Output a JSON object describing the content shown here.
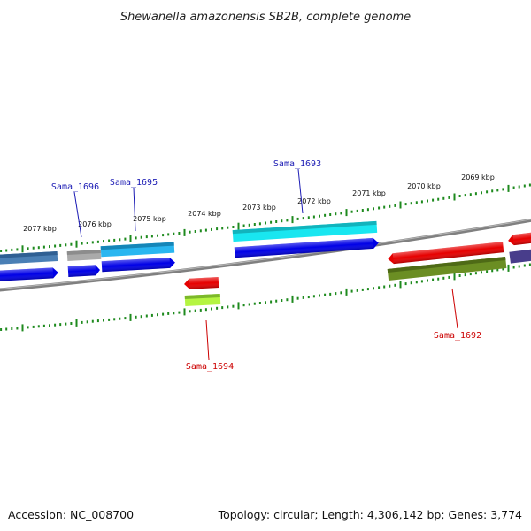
{
  "title": "Shewanella amazonensis SB2B, complete genome",
  "accession": "Accession: NC_008700",
  "summary": "Topology: circular; Length: 4,306,142 bp; Genes: 3,774",
  "ticks": [
    "2077 kbp",
    "2076 kbp",
    "2075 kbp",
    "2074 kbp",
    "2073 kbp",
    "2072 kbp",
    "2071 kbp",
    "2070 kbp",
    "2069 kbp"
  ],
  "genes": [
    {
      "name": "Sama_1696",
      "color": "#1a1ab4"
    },
    {
      "name": "Sama_1695",
      "color": "#1a1ab4"
    },
    {
      "name": "Sama_1693",
      "color": "#1a1ab4"
    },
    {
      "name": "Sama_1694",
      "color": "#cc0000"
    },
    {
      "name": "Sama_1692",
      "color": "#cc0000"
    }
  ],
  "colors": {
    "backbone": "#808080",
    "tick": "#1e8a1e",
    "forward_strand": "#0000e6",
    "reverse_strand": "#e60000",
    "cds_cyan": "#19d4ee",
    "cds_lightblue": "#29a3e0",
    "cds_steel": "#4a7fb5",
    "cds_gray": "#aaaaaa",
    "cds_olive": "#6b8e23",
    "cds_lime": "#b5f542",
    "cds_slate": "#483d8b"
  }
}
